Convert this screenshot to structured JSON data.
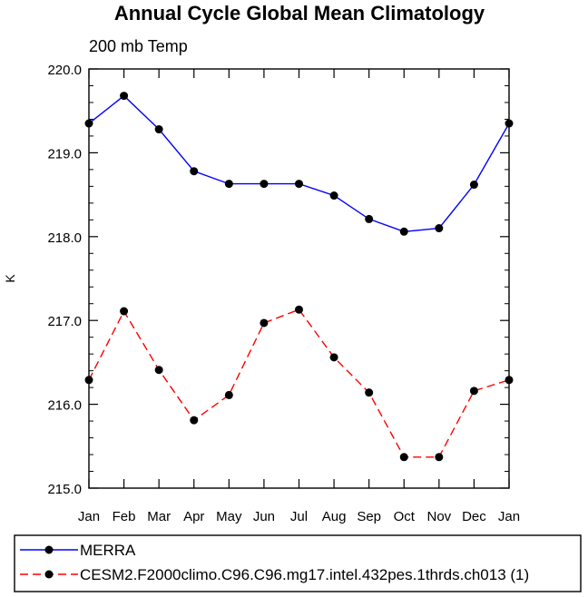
{
  "chart_data": {
    "type": "line",
    "title": "Annual Cycle Global Mean Climatology",
    "subtitle": "200 mb Temp",
    "xlabel": "",
    "ylabel": "K",
    "ylim": [
      215.0,
      220.0
    ],
    "yticks": [
      "215.0",
      "216.0",
      "217.0",
      "218.0",
      "219.0",
      "220.0"
    ],
    "grid": false,
    "legend_position": "bottom",
    "categories": [
      "Jan",
      "Feb",
      "Mar",
      "Apr",
      "May",
      "Jun",
      "Jul",
      "Aug",
      "Sep",
      "Oct",
      "Nov",
      "Dec",
      "Jan"
    ],
    "series": [
      {
        "name": "MERRA",
        "color": "#0000ff",
        "dash": "solid",
        "values": [
          219.35,
          219.68,
          219.28,
          218.78,
          218.63,
          218.63,
          218.63,
          218.49,
          218.21,
          218.06,
          218.1,
          218.62,
          219.35
        ]
      },
      {
        "name": "CESM2.F2000climo.C96.C96.mg17.intel.432pes.1thrds.ch013 (1)",
        "color": "#ff0000",
        "dash": "dashed",
        "values": [
          216.29,
          217.11,
          216.41,
          215.81,
          216.11,
          216.97,
          217.13,
          216.56,
          216.14,
          215.37,
          215.37,
          216.16,
          216.29
        ]
      }
    ]
  }
}
